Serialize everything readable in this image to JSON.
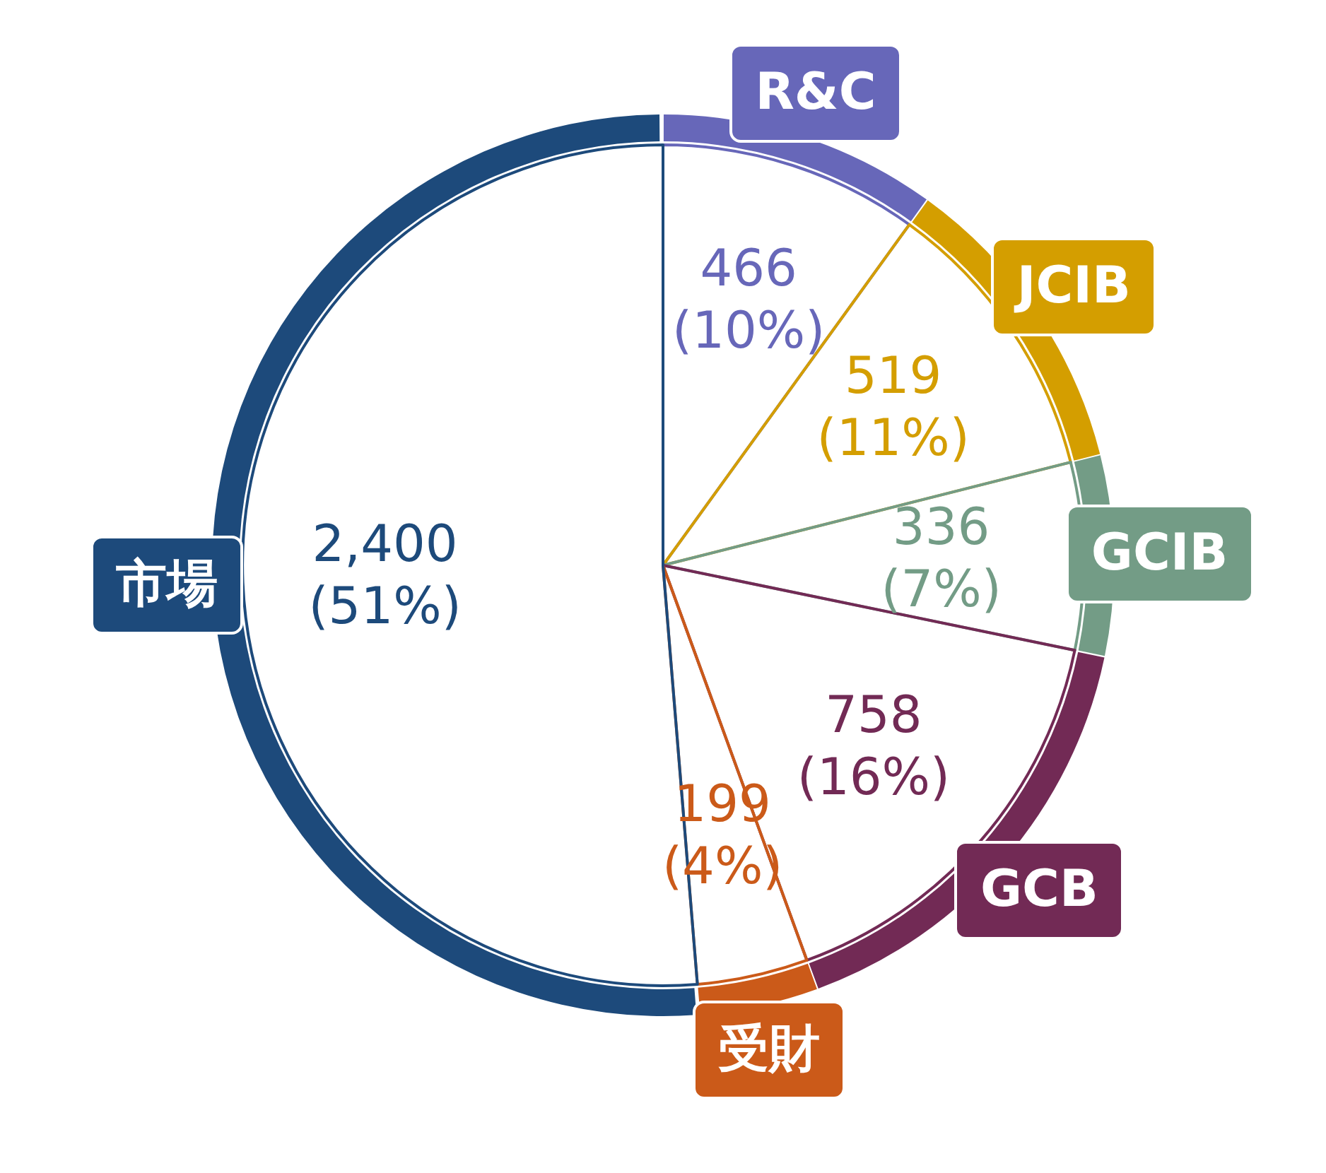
{
  "chart_data": {
    "type": "donut",
    "categories": [
      "R&C",
      "JCIB",
      "GCIB",
      "GCB",
      "受財",
      "市場"
    ],
    "values": [
      466,
      519,
      336,
      758,
      199,
      2400
    ],
    "colors": [
      "#6767b9",
      "#d49e00",
      "#739c86",
      "#722a55",
      "#cb5a19",
      "#1d4a7b"
    ],
    "value_labels": [
      "466\n(10%)",
      "519\n(11%)",
      "336\n(7%)",
      "758\n(16%)",
      "199\n(4%)",
      "2,400\n(51%)"
    ],
    "legend": false
  }
}
